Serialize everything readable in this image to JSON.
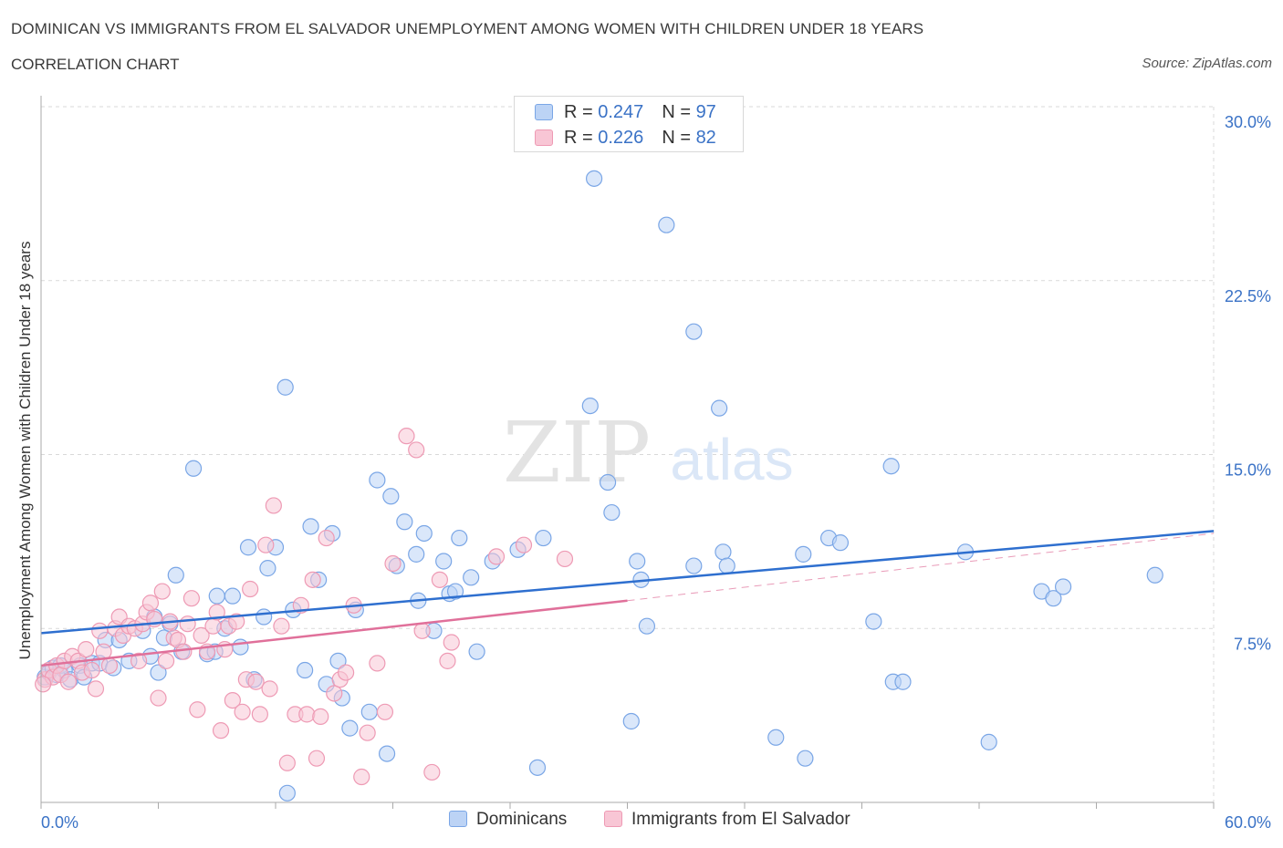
{
  "title": "DOMINICAN VS IMMIGRANTS FROM EL SALVADOR UNEMPLOYMENT AMONG WOMEN WITH CHILDREN UNDER 18 YEARS",
  "subtitle": "CORRELATION CHART",
  "source": "Source: ZipAtlas.com",
  "watermark": {
    "zip": "ZIP",
    "atlas": "atlas"
  },
  "stats": [
    {
      "r_label": "R = ",
      "r_value": "0.247",
      "n_label": "N = ",
      "n_value": "97",
      "fill": "#bcd3f5",
      "stroke": "#7aa6e6"
    },
    {
      "r_label": "R = ",
      "r_value": "0.226",
      "n_label": "N = ",
      "n_value": "82",
      "fill": "#f8c6d5",
      "stroke": "#ee9ab4"
    }
  ],
  "legend": [
    {
      "label": "Dominicans",
      "fill": "#bcd3f5",
      "stroke": "#7aa6e6"
    },
    {
      "label": "Immigrants from El Salvador",
      "fill": "#f8c6d5",
      "stroke": "#ee9ab4"
    }
  ],
  "chart_data": {
    "type": "scatter",
    "title": "DOMINICAN VS IMMIGRANTS FROM EL SALVADOR UNEMPLOYMENT AMONG WOMEN WITH CHILDREN UNDER 18 YEARS",
    "subtitle": "CORRELATION CHART",
    "xlabel": "",
    "ylabel": "Unemployment Among Women with Children Under 18 years",
    "xlim": [
      0,
      60
    ],
    "ylim": [
      0,
      30
    ],
    "x_tick_labels": [
      "0.0%",
      "60.0%"
    ],
    "y_ticks": [
      7.5,
      15,
      22.5,
      30
    ],
    "y_tick_labels": [
      "7.5%",
      "15.0%",
      "22.5%",
      "30.0%"
    ],
    "grid": true,
    "legend_position": "bottom",
    "series": [
      {
        "name": "Dominicans",
        "color": "#7aa6e6",
        "fill": "#bcd3f5",
        "trend": {
          "x": [
            0,
            60
          ],
          "y": [
            7.3,
            11.7
          ],
          "color": "#2e6fcf"
        },
        "points": [
          [
            0.2,
            5.4
          ],
          [
            0.4,
            5.6
          ],
          [
            0.6,
            5.8
          ],
          [
            0.8,
            5.5
          ],
          [
            1.0,
            5.9
          ],
          [
            1.2,
            5.7
          ],
          [
            1.5,
            5.3
          ],
          [
            2.0,
            5.9
          ],
          [
            2.2,
            5.4
          ],
          [
            2.6,
            6.0
          ],
          [
            3.0,
            6.0
          ],
          [
            3.3,
            7.0
          ],
          [
            3.7,
            5.8
          ],
          [
            4.0,
            7.0
          ],
          [
            4.5,
            6.1
          ],
          [
            5.2,
            7.4
          ],
          [
            5.6,
            6.3
          ],
          [
            5.8,
            8.0
          ],
          [
            6.0,
            5.6
          ],
          [
            6.3,
            7.1
          ],
          [
            6.6,
            7.7
          ],
          [
            6.9,
            9.8
          ],
          [
            7.2,
            6.5
          ],
          [
            7.8,
            14.4
          ],
          [
            8.5,
            6.4
          ],
          [
            8.9,
            6.5
          ],
          [
            9.0,
            8.9
          ],
          [
            9.4,
            7.5
          ],
          [
            9.8,
            8.9
          ],
          [
            10.2,
            6.7
          ],
          [
            10.6,
            11.0
          ],
          [
            10.9,
            5.3
          ],
          [
            11.4,
            8.0
          ],
          [
            11.6,
            10.1
          ],
          [
            12.0,
            11.0
          ],
          [
            12.5,
            17.9
          ],
          [
            12.6,
            0.4
          ],
          [
            12.9,
            8.3
          ],
          [
            13.5,
            5.7
          ],
          [
            13.8,
            11.9
          ],
          [
            14.2,
            9.6
          ],
          [
            14.6,
            5.1
          ],
          [
            14.9,
            11.6
          ],
          [
            15.2,
            6.1
          ],
          [
            15.4,
            4.5
          ],
          [
            15.8,
            3.2
          ],
          [
            16.1,
            8.3
          ],
          [
            16.8,
            3.9
          ],
          [
            17.2,
            13.9
          ],
          [
            17.7,
            2.1
          ],
          [
            17.9,
            13.2
          ],
          [
            18.2,
            10.2
          ],
          [
            18.6,
            12.1
          ],
          [
            19.2,
            10.7
          ],
          [
            19.3,
            8.7
          ],
          [
            19.6,
            11.6
          ],
          [
            20.1,
            7.4
          ],
          [
            20.6,
            10.4
          ],
          [
            20.9,
            9.0
          ],
          [
            21.2,
            9.1
          ],
          [
            21.4,
            11.4
          ],
          [
            22.0,
            9.7
          ],
          [
            22.3,
            6.5
          ],
          [
            23.1,
            10.4
          ],
          [
            24.4,
            10.9
          ],
          [
            25.4,
            1.5
          ],
          [
            25.7,
            11.4
          ],
          [
            28.1,
            17.1
          ],
          [
            28.3,
            26.9
          ],
          [
            29.0,
            13.8
          ],
          [
            29.2,
            12.5
          ],
          [
            30.2,
            3.5
          ],
          [
            30.5,
            10.4
          ],
          [
            30.7,
            9.6
          ],
          [
            31.0,
            7.6
          ],
          [
            32.0,
            24.9
          ],
          [
            33.4,
            20.3
          ],
          [
            33.4,
            10.2
          ],
          [
            34.7,
            17.0
          ],
          [
            34.9,
            10.8
          ],
          [
            35.1,
            10.2
          ],
          [
            37.6,
            2.8
          ],
          [
            39.0,
            10.7
          ],
          [
            39.1,
            1.9
          ],
          [
            40.3,
            11.4
          ],
          [
            40.9,
            11.2
          ],
          [
            42.6,
            7.8
          ],
          [
            43.5,
            14.5
          ],
          [
            43.6,
            5.2
          ],
          [
            44.1,
            5.2
          ],
          [
            47.3,
            10.8
          ],
          [
            48.5,
            2.6
          ],
          [
            51.2,
            9.1
          ],
          [
            51.8,
            8.8
          ],
          [
            52.3,
            9.3
          ],
          [
            57.0,
            9.8
          ]
        ]
      },
      {
        "name": "Immigrants from El Salvador",
        "color": "#ee9ab4",
        "fill": "#f8c6d5",
        "trend": {
          "x": [
            0,
            30
          ],
          "y": [
            5.9,
            8.7
          ],
          "color": "#e0709a",
          "extended": {
            "x": [
              30,
              60
            ],
            "y": [
              8.7,
              11.6
            ]
          }
        },
        "points": [
          [
            0.2,
            5.3
          ],
          [
            0.4,
            5.7
          ],
          [
            0.6,
            5.4
          ],
          [
            0.8,
            5.9
          ],
          [
            1.0,
            5.5
          ],
          [
            1.2,
            6.1
          ],
          [
            1.4,
            5.2
          ],
          [
            1.6,
            6.3
          ],
          [
            1.9,
            6.1
          ],
          [
            2.1,
            5.6
          ],
          [
            2.3,
            6.6
          ],
          [
            2.6,
            5.7
          ],
          [
            2.8,
            4.9
          ],
          [
            3.0,
            7.4
          ],
          [
            3.2,
            6.5
          ],
          [
            3.5,
            5.9
          ],
          [
            3.8,
            7.5
          ],
          [
            4.0,
            8.0
          ],
          [
            4.2,
            7.2
          ],
          [
            4.5,
            7.6
          ],
          [
            4.8,
            7.5
          ],
          [
            5.0,
            6.1
          ],
          [
            5.2,
            7.7
          ],
          [
            5.4,
            8.2
          ],
          [
            5.6,
            8.6
          ],
          [
            5.8,
            7.9
          ],
          [
            6.0,
            4.5
          ],
          [
            6.2,
            9.1
          ],
          [
            6.4,
            6.1
          ],
          [
            6.6,
            7.8
          ],
          [
            6.8,
            7.1
          ],
          [
            7.0,
            7.0
          ],
          [
            7.3,
            6.5
          ],
          [
            7.5,
            7.7
          ],
          [
            7.7,
            8.8
          ],
          [
            8.0,
            4.0
          ],
          [
            8.2,
            7.2
          ],
          [
            8.5,
            6.5
          ],
          [
            8.8,
            7.6
          ],
          [
            9.0,
            8.2
          ],
          [
            9.2,
            3.1
          ],
          [
            9.4,
            6.6
          ],
          [
            9.6,
            7.6
          ],
          [
            9.8,
            4.4
          ],
          [
            10.0,
            7.8
          ],
          [
            10.3,
            3.9
          ],
          [
            10.5,
            5.3
          ],
          [
            10.7,
            9.2
          ],
          [
            11.0,
            5.2
          ],
          [
            11.2,
            3.8
          ],
          [
            11.5,
            11.1
          ],
          [
            11.7,
            4.9
          ],
          [
            11.9,
            12.8
          ],
          [
            12.3,
            7.6
          ],
          [
            12.6,
            1.7
          ],
          [
            13.0,
            3.8
          ],
          [
            13.3,
            8.5
          ],
          [
            13.6,
            3.8
          ],
          [
            13.9,
            9.6
          ],
          [
            14.1,
            1.9
          ],
          [
            14.3,
            3.7
          ],
          [
            14.6,
            11.4
          ],
          [
            15.0,
            4.7
          ],
          [
            15.3,
            5.3
          ],
          [
            15.6,
            5.6
          ],
          [
            16.0,
            8.5
          ],
          [
            16.4,
            1.1
          ],
          [
            16.7,
            3.0
          ],
          [
            17.2,
            6.0
          ],
          [
            17.6,
            3.9
          ],
          [
            18.0,
            10.3
          ],
          [
            18.7,
            15.8
          ],
          [
            19.2,
            15.2
          ],
          [
            19.5,
            7.4
          ],
          [
            20.0,
            1.3
          ],
          [
            20.4,
            9.6
          ],
          [
            20.8,
            6.1
          ],
          [
            21.0,
            6.9
          ],
          [
            23.3,
            10.6
          ],
          [
            24.7,
            11.1
          ],
          [
            26.8,
            10.5
          ],
          [
            0.1,
            5.1
          ]
        ]
      }
    ]
  }
}
